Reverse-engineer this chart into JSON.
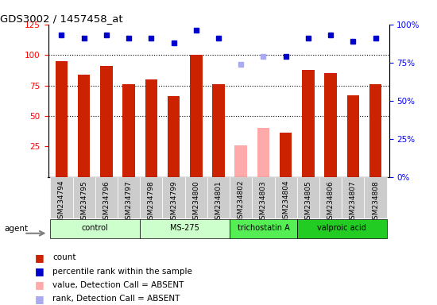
{
  "title": "GDS3002 / 1457458_at",
  "samples": [
    "GSM234794",
    "GSM234795",
    "GSM234796",
    "GSM234797",
    "GSM234798",
    "GSM234799",
    "GSM234800",
    "GSM234801",
    "GSM234802",
    "GSM234803",
    "GSM234804",
    "GSM234805",
    "GSM234806",
    "GSM234807",
    "GSM234808"
  ],
  "count_values": [
    95,
    84,
    91,
    76,
    80,
    66,
    100,
    76,
    null,
    null,
    36,
    88,
    85,
    67,
    76
  ],
  "count_absent": [
    null,
    null,
    null,
    null,
    null,
    null,
    null,
    null,
    26,
    40,
    null,
    null,
    null,
    null,
    null
  ],
  "rank_values": [
    93,
    91,
    93,
    91,
    91,
    88,
    96,
    91,
    null,
    null,
    79,
    91,
    93,
    89,
    91
  ],
  "rank_absent": [
    null,
    null,
    null,
    null,
    null,
    null,
    null,
    null,
    74,
    79,
    null,
    null,
    null,
    null,
    null
  ],
  "group_info": [
    {
      "name": "control",
      "indices": [
        0,
        1,
        2,
        3
      ],
      "color": "#ccffcc"
    },
    {
      "name": "MS-275",
      "indices": [
        4,
        5,
        6,
        7
      ],
      "color": "#ccffcc"
    },
    {
      "name": "trichostatin A",
      "indices": [
        8,
        9,
        10
      ],
      "color": "#55ee55"
    },
    {
      "name": "valproic acid",
      "indices": [
        11,
        12,
        13,
        14
      ],
      "color": "#22cc22"
    }
  ],
  "ylim_left": [
    0,
    125
  ],
  "ylim_right": [
    0,
    100
  ],
  "yticks_left": [
    25,
    50,
    75,
    100,
    125
  ],
  "ytick_labels_left": [
    "25",
    "50",
    "75",
    "100",
    "125"
  ],
  "yticks_right": [
    0,
    25,
    50,
    75,
    100
  ],
  "ytick_labels_right": [
    "0%",
    "25%",
    "50%",
    "75%",
    "100%"
  ],
  "dotted_lines": [
    50,
    75,
    100
  ],
  "bar_color": "#cc2200",
  "bar_absent_color": "#ffaaaa",
  "rank_color": "#0000cc",
  "rank_absent_color": "#aaaaee",
  "legend_items": [
    {
      "label": "count",
      "color": "#cc2200"
    },
    {
      "label": "percentile rank within the sample",
      "color": "#0000cc"
    },
    {
      "label": "value, Detection Call = ABSENT",
      "color": "#ffaaaa"
    },
    {
      "label": "rank, Detection Call = ABSENT",
      "color": "#aaaaee"
    }
  ]
}
